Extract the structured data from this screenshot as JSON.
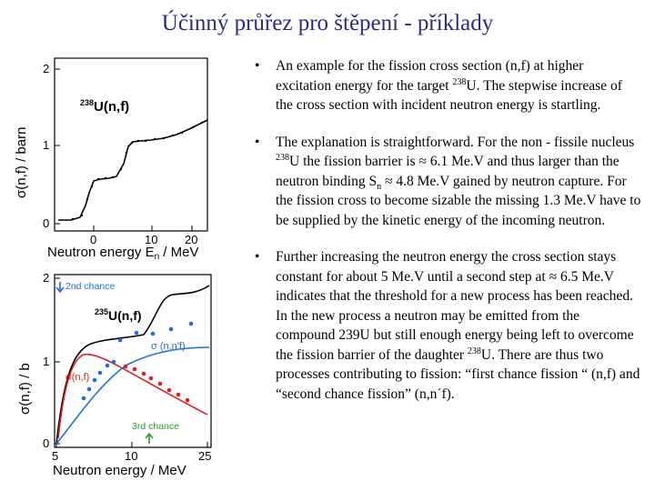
{
  "title": "Účinný průřez pro štěpení - příklady",
  "plot1": {
    "y_label": "σ(n,f) / barn",
    "x_label": "Neutron energy E",
    "x_label_sub": "n",
    "x_label_unit": " / MeV",
    "reaction_sup": "238",
    "reaction_text": "U(n,f)",
    "y_ticks": [
      "0",
      "1",
      "2"
    ],
    "x_ticks": [
      "0",
      "10",
      "20"
    ]
  },
  "plot2": {
    "y_label": "σ(n,f) / b",
    "x_label": "Neutron energy / MeV",
    "reaction_sup": "235",
    "reaction_text": "U(n,f)",
    "second_chance": "2nd chance",
    "third_chance": "3rd chance",
    "sigma_nn": "σ (n,n'f)",
    "sigma_nf": "σ(n,f)",
    "y_ticks": [
      "0",
      "1",
      "2"
    ],
    "x_ticks": [
      "5",
      "10",
      "25"
    ]
  },
  "bullets": {
    "b1": {
      "before_sup": "An example for the fission cross section (n,f) at higher excitation energy for the target ",
      "sup": "238",
      "after_sup": "U. The stepwise increase of the cross section with incident neutron energy is startling."
    },
    "b2": {
      "before_sup": "The explanation is straightforward. For the non - fissile nucleus ",
      "sup": "238",
      "middle": "U the fission barrier is ≈ 6.1 Me.V and thus larger than the neutron binding S",
      "sub": "n",
      "after_sub": " ≈ 4.8 Me.V gained by neutron capture. For the fission cross to become sizable the missing 1.3 Me.V have to be supplied by the kinetic energy of the incoming neutron."
    },
    "b3": {
      "before_sup": "Further increasing the neutron energy the cross section stays constant for about 5 Me.V until a second step at ≈ 6.5 Me.V indicates that the threshold for a new process has been reached. In the new process a neutron may be emitted from the compound 239U but still enough energy being left to overcome the fission barrier of the daughter ",
      "sup": "238",
      "after_sup": "U. There are thus two processes contributing to fission: “first chance fission “ (n,f) and “second chance fission” (n,n´f)."
    }
  },
  "colors": {
    "title": "#2a2a8c",
    "red": "#e02020",
    "blue": "#1e6fd9",
    "green": "#2a9a2a"
  }
}
